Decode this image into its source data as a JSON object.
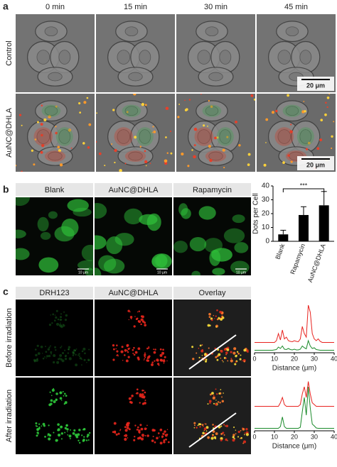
{
  "panels": [
    {
      "label": "a",
      "columns": [
        "0 min",
        "15 min",
        "30 min",
        "45 min"
      ],
      "rows": [
        "Control",
        "AuNC@DHLA"
      ],
      "scale_bar": "20 μm"
    },
    {
      "label": "b",
      "columns": [
        "Blank",
        "AuNC@DHLA",
        "Rapamycin"
      ],
      "scale_bar": "10 μm"
    },
    {
      "label": "c",
      "columns": [
        "DRH123",
        "AuNC@DHLA",
        "Overlay"
      ],
      "rows": [
        "Before irradiation",
        "After irradiation"
      ]
    }
  ],
  "chart_data": [
    {
      "type": "bar",
      "ylabel": "Dots per Cell",
      "categories": [
        "Blank",
        "Rapamycin",
        "AuNC@DHLA"
      ],
      "values": [
        5,
        19,
        26
      ],
      "errors": [
        3,
        6,
        10
      ],
      "color": "#000000",
      "ylim": [
        0,
        40
      ],
      "yticks": [
        0,
        10,
        20,
        30,
        40
      ],
      "annotation": "***"
    },
    {
      "type": "line",
      "xlabel": "Distance (μm)",
      "xlim": [
        0,
        40
      ],
      "xticks": [
        0,
        10,
        20,
        30,
        40
      ],
      "ylim": [
        0,
        14
      ],
      "x": [
        0,
        1,
        2,
        3,
        4,
        5,
        6,
        7,
        8,
        9,
        10,
        11,
        12,
        13,
        14,
        15,
        16,
        17,
        18,
        19,
        20,
        21,
        22,
        23,
        24,
        25,
        26,
        27,
        28,
        29,
        30,
        31,
        32,
        33,
        34,
        35,
        36,
        37,
        38,
        39,
        40
      ],
      "series": [
        {
          "color": "#e8231f",
          "values": [
            2.5,
            2.5,
            2.5,
            2.5,
            2.5,
            2.5,
            2.5,
            2.5,
            2.5,
            2.5,
            2.5,
            3,
            5,
            3.2,
            6,
            3.5,
            4,
            3,
            2.8,
            2.7,
            3,
            2.8,
            2.7,
            3.5,
            7,
            5,
            4,
            13,
            11,
            5,
            3.5,
            3,
            3.5,
            2.8,
            2.5,
            2.5,
            2.5,
            2.5,
            2.5,
            2.5,
            2.5
          ]
        },
        {
          "color": "#1a8a2a",
          "values": [
            0.3,
            0.3,
            0.3,
            0.3,
            0.3,
            0.3,
            0.3,
            0.3,
            0.3,
            0.3,
            0.4,
            0.5,
            1.2,
            0.8,
            1.5,
            0.6,
            0.5,
            0.8,
            0.5,
            0.4,
            0.6,
            0.4,
            0.4,
            0.6,
            1.5,
            1,
            0.7,
            3,
            1.5,
            0.8,
            1,
            0.5,
            0.4,
            0.3,
            0.3,
            0.3,
            0.3,
            0.3,
            0.3,
            0.3,
            0.3
          ]
        }
      ]
    },
    {
      "type": "line",
      "xlabel": "Distance (μm)",
      "xlim": [
        0,
        40
      ],
      "xticks": [
        0,
        10,
        20,
        30,
        40
      ],
      "ylim": [
        0,
        14
      ],
      "x": [
        0,
        1,
        2,
        3,
        4,
        5,
        6,
        7,
        8,
        9,
        10,
        11,
        12,
        13,
        14,
        15,
        16,
        17,
        18,
        19,
        20,
        21,
        22,
        23,
        24,
        25,
        26,
        27,
        28,
        29,
        30,
        31,
        32,
        33,
        34,
        35,
        36,
        37,
        38,
        39,
        40
      ],
      "series": [
        {
          "color": "#e8231f",
          "values": [
            6.5,
            6.5,
            6.5,
            6.5,
            6.5,
            6.5,
            6.5,
            6.5,
            6.5,
            6.5,
            6.5,
            6.5,
            6.5,
            7.5,
            9,
            7,
            6.5,
            6.5,
            6.5,
            6.5,
            6.5,
            6.5,
            6.5,
            7,
            10,
            12,
            9,
            13.5,
            10,
            7.5,
            7,
            6.5,
            6.5,
            6.5,
            6.5,
            6.5,
            6.5,
            6.5,
            6.5,
            6.5,
            6.5
          ]
        },
        {
          "color": "#1a8a2a",
          "values": [
            0.3,
            0.3,
            0.3,
            0.3,
            0.3,
            0.3,
            0.3,
            0.3,
            0.3,
            0.3,
            0.3,
            0.3,
            0.3,
            0.8,
            3.5,
            0.8,
            0.3,
            0.3,
            0.3,
            0.3,
            0.3,
            0.3,
            0.3,
            0.6,
            5,
            9,
            4,
            12,
            6,
            1.5,
            1,
            0.4,
            0.3,
            0.3,
            0.3,
            0.3,
            0.3,
            0.3,
            0.3,
            0.3,
            0.3
          ]
        }
      ]
    }
  ]
}
